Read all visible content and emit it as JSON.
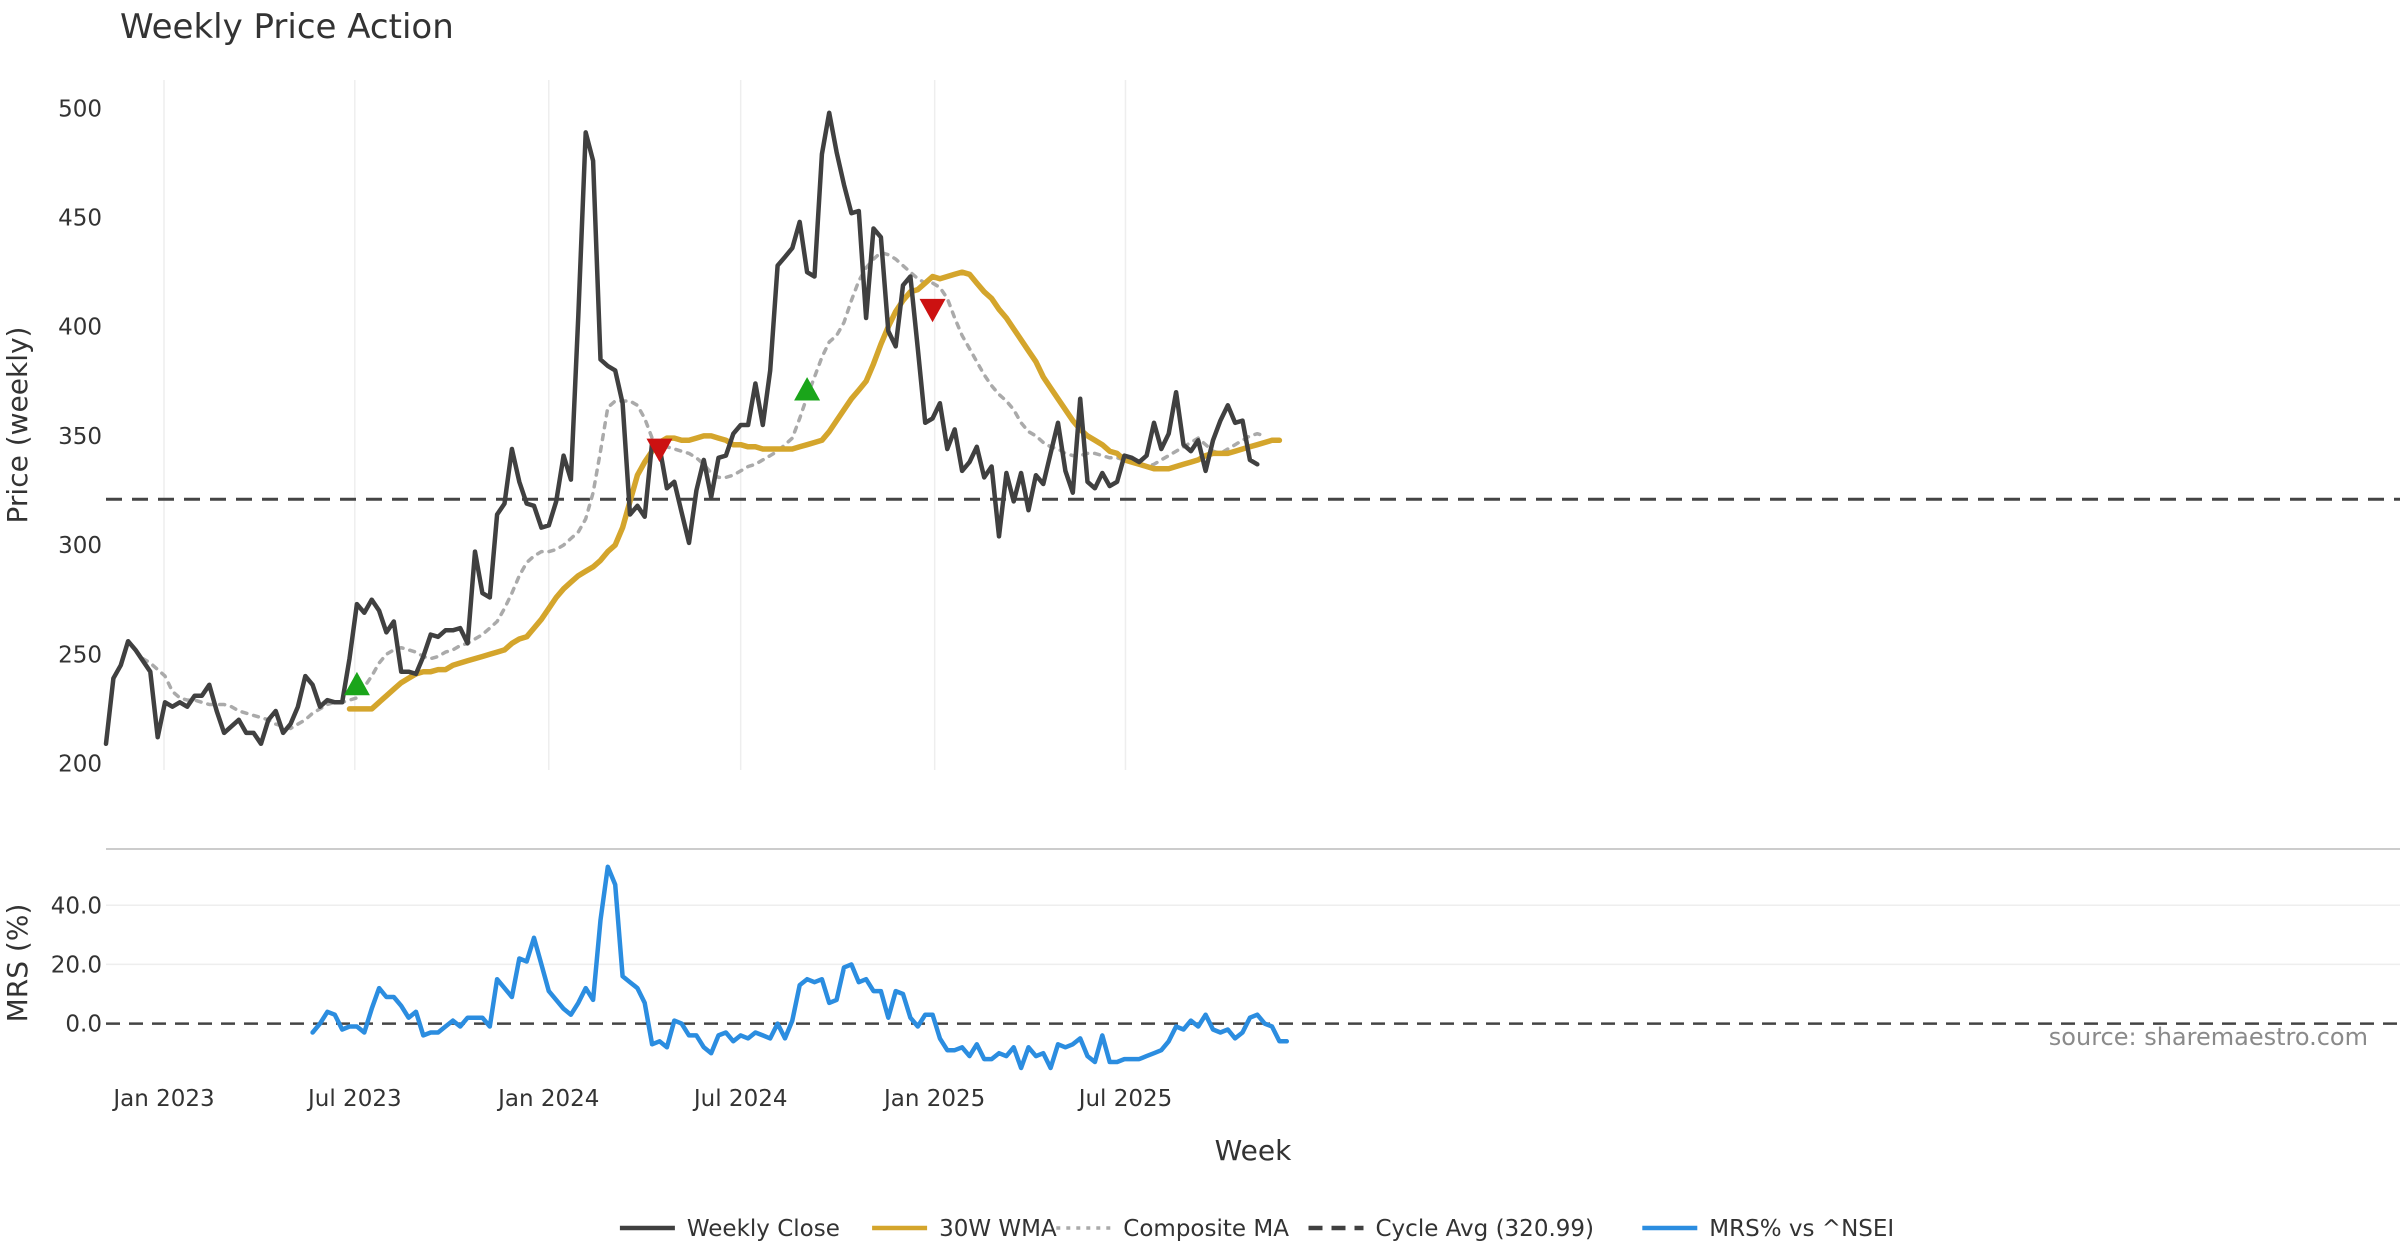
{
  "chart_data": {
    "type": "line",
    "title": "Weekly Price Action",
    "xlabel": "Week",
    "x_start": "2022-11-07",
    "x_tick_labels": [
      "Jan 2023",
      "Jul 2023",
      "Jan 2024",
      "Jul 2024",
      "Jan 2025",
      "Jul 2025"
    ],
    "x_tick_dates": [
      "2023-01-01",
      "2023-07-01",
      "2024-01-01",
      "2024-07-01",
      "2025-01-01",
      "2025-07-01"
    ],
    "price_panel": {
      "ylabel": "Price (weekly)",
      "ylim": [
        197,
        513
      ],
      "y_ticks": [
        200,
        250,
        300,
        350,
        400,
        450,
        500
      ],
      "grid": "x",
      "cycle_avg": 320.99,
      "series": [
        {
          "name": "Weekly Close",
          "color": "#404040",
          "values": [
            209,
            239,
            245,
            256,
            252,
            247,
            242,
            212,
            228,
            226,
            228,
            226,
            231,
            231,
            236,
            224,
            214,
            217,
            220,
            214,
            214,
            209,
            220,
            224,
            214,
            218,
            226,
            240,
            236,
            226,
            229,
            228,
            228,
            248,
            273,
            269,
            275,
            270,
            260,
            265,
            242,
            242,
            241,
            249,
            259,
            258,
            261,
            261,
            262,
            255,
            297,
            278,
            276,
            314,
            319,
            344,
            329,
            319,
            318,
            308,
            309,
            320,
            341,
            330,
            405,
            489,
            476,
            385,
            382,
            380,
            365,
            314,
            318,
            313,
            347,
            345,
            326,
            329,
            315,
            301,
            325,
            339,
            322,
            340,
            341,
            351,
            355,
            355,
            374,
            355,
            380,
            428,
            432,
            436,
            448,
            425,
            423,
            479,
            498,
            480,
            465,
            452,
            453,
            404,
            445,
            441,
            398,
            391,
            419,
            423,
            390,
            356,
            358,
            365,
            344,
            353,
            334,
            338,
            345,
            331,
            336,
            304,
            333,
            320,
            333,
            316,
            332,
            328,
            342,
            356,
            334,
            324,
            367,
            329,
            326,
            333,
            327,
            329,
            341,
            340,
            338,
            341,
            356,
            344,
            351,
            370,
            346,
            343,
            348,
            334,
            348,
            357,
            364,
            356,
            357,
            339,
            337
          ],
          "values_source_note": ""
        },
        {
          "name": "30W WMA",
          "color": "#d4a52c",
          "start_index": 33,
          "values": [
            225,
            225,
            225,
            225,
            228,
            231,
            234,
            237,
            239,
            241,
            242,
            242,
            243,
            243,
            245,
            246,
            247,
            248,
            249,
            250,
            251,
            252,
            255,
            257,
            258,
            262,
            266,
            271,
            276,
            280,
            283,
            286,
            288,
            290,
            293,
            297,
            300,
            308,
            320,
            332,
            338,
            343,
            347,
            349,
            349,
            348,
            348,
            349,
            350,
            350,
            349,
            348,
            346,
            346,
            345,
            345,
            344,
            344,
            344,
            344,
            344,
            345,
            346,
            347,
            348,
            352,
            357,
            362,
            367,
            371,
            375,
            383,
            392,
            400,
            407,
            412,
            416,
            417,
            420,
            423,
            422,
            423,
            424,
            425,
            424,
            420,
            416,
            413,
            408,
            404,
            399,
            394,
            389,
            384,
            377,
            372,
            367,
            362,
            357,
            353,
            350,
            348,
            346,
            343,
            342,
            339,
            338,
            337,
            336,
            335,
            335,
            335,
            336,
            337,
            338,
            339,
            341,
            342,
            342,
            342,
            343,
            344,
            345,
            346,
            347,
            348,
            348
          ]
        },
        {
          "name": "Composite MA",
          "color": "#aaaaaa",
          "start_index": 5,
          "values": [
            248,
            246,
            243,
            240,
            233,
            230,
            229,
            229,
            228,
            227,
            227,
            227,
            226,
            224,
            223,
            222,
            221,
            220,
            218,
            217,
            216,
            218,
            220,
            223,
            225,
            227,
            228,
            228,
            229,
            230,
            235,
            240,
            246,
            250,
            252,
            253,
            252,
            251,
            249,
            248,
            249,
            251,
            252,
            254,
            255,
            257,
            259,
            262,
            265,
            271,
            278,
            286,
            292,
            295,
            297,
            297,
            298,
            300,
            303,
            306,
            312,
            324,
            343,
            363,
            366,
            366,
            366,
            364,
            358,
            349,
            344,
            345,
            344,
            343,
            342,
            340,
            337,
            333,
            331,
            331,
            332,
            334,
            336,
            337,
            339,
            341,
            343,
            346,
            349,
            358,
            368,
            377,
            386,
            393,
            396,
            402,
            412,
            421,
            427,
            431,
            434,
            433,
            431,
            428,
            425,
            422,
            420,
            420,
            418,
            413,
            404,
            396,
            390,
            384,
            378,
            373,
            369,
            366,
            362,
            356,
            352,
            350,
            347,
            345,
            344,
            342,
            341,
            341,
            342,
            342,
            341,
            340,
            340,
            339,
            338,
            337,
            336,
            337,
            339,
            341,
            343,
            345,
            347,
            349,
            346,
            343,
            342,
            344,
            346,
            348,
            350,
            351,
            350
          ]
        }
      ],
      "markers": [
        {
          "type": "buy",
          "date_index": 34,
          "value": 236,
          "color": "#1aa51a"
        },
        {
          "type": "sell",
          "date_index": 75,
          "value": 344,
          "color": "#cc1111"
        },
        {
          "type": "buy",
          "date_index": 95,
          "value": 371,
          "color": "#1aa51a"
        },
        {
          "type": "sell",
          "date_index": 112,
          "value": 408,
          "color": "#cc1111"
        }
      ]
    },
    "mrs_panel": {
      "ylabel": "MRS (%)",
      "ylim": [
        -14,
        57
      ],
      "y_ticks": [
        0,
        20,
        40
      ],
      "y_tick_labels": [
        "0.0",
        "20.0",
        "40.0"
      ],
      "zero_line": 0,
      "series": [
        {
          "name": "MRS% vs ^NSEI",
          "color": "#2b8de0",
          "start_index": 28,
          "values": [
            -3,
            0,
            4,
            3,
            -2,
            -1,
            -1,
            -3,
            5,
            12,
            9,
            9,
            6,
            2,
            4,
            -4,
            -3,
            -3,
            -1,
            1,
            -1,
            2,
            2,
            2,
            -1,
            15,
            12,
            9,
            22,
            21,
            29,
            20,
            11,
            8,
            5,
            3,
            7,
            12,
            8,
            35,
            53,
            47,
            16,
            14,
            12,
            7,
            -7,
            -6,
            -8,
            1,
            0,
            -4,
            -4,
            -8,
            -10,
            -4,
            -3,
            -6,
            -4,
            -5,
            -3,
            -4,
            -5,
            0,
            -5,
            1,
            13,
            15,
            14,
            15,
            7,
            8,
            19,
            20,
            14,
            15,
            11,
            11,
            2,
            11,
            10,
            2,
            -1,
            3,
            3,
            -5,
            -9,
            -9,
            -8,
            -11,
            -7,
            -12,
            -12,
            -10,
            -11,
            -8,
            -15,
            -8,
            -11,
            -10,
            -15,
            -7,
            -8,
            -7,
            -5,
            -11,
            -13,
            -4,
            -13,
            -13,
            -12,
            -12,
            -12,
            -11,
            -10,
            -9,
            -6,
            -1,
            -2,
            1,
            -1,
            3,
            -2,
            -3,
            -2,
            -5,
            -3,
            2,
            3,
            0,
            -1,
            -6,
            -6
          ]
        }
      ]
    },
    "legend": {
      "placement": "bottom-center",
      "entries": [
        {
          "label": "Weekly Close",
          "color": "#404040",
          "style": "solid"
        },
        {
          "label": "30W WMA",
          "color": "#d4a52c",
          "style": "solid"
        },
        {
          "label": "Composite MA",
          "color": "#aaaaaa",
          "style": "dotted"
        },
        {
          "label": "Cycle Avg (320.99)",
          "color": "#404040",
          "style": "dashed"
        },
        {
          "label": "MRS% vs ^NSEI",
          "color": "#2b8de0",
          "style": "solid"
        }
      ]
    },
    "annotation": "source: sharemaestro.com"
  }
}
